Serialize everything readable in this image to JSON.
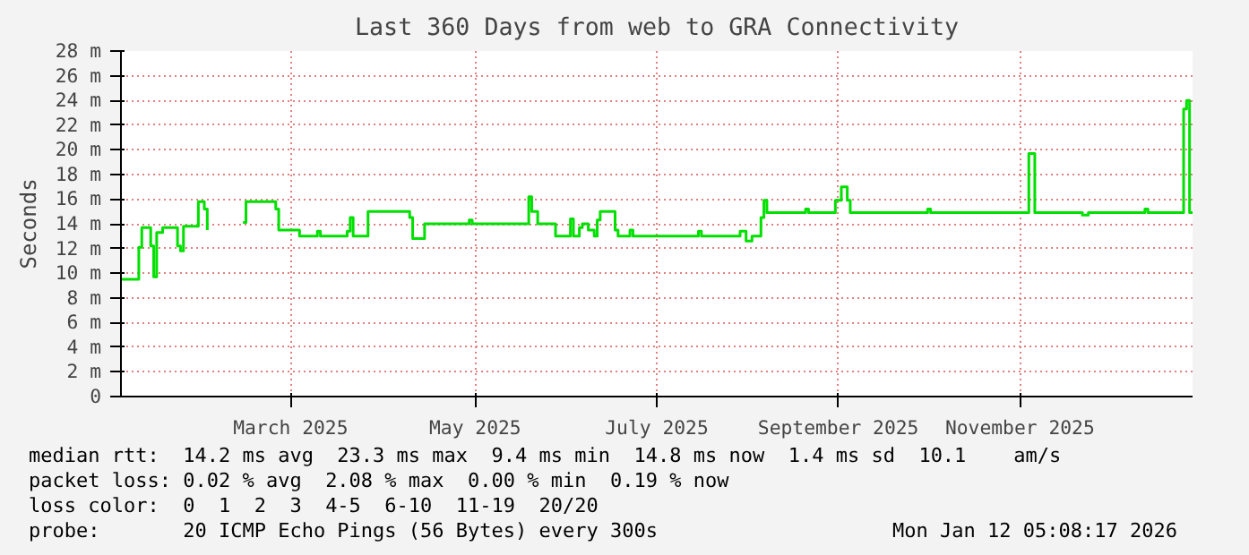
{
  "chart_data": {
    "type": "step",
    "title": "Last 360 Days from web to GRA Connectivity",
    "ylabel": "Seconds",
    "x": [
      "2025-01-17",
      "2025-01-23",
      "2025-01-24",
      "2025-01-27",
      "2025-01-28",
      "2025-01-29",
      "2025-01-31",
      "2025-02-05",
      "2025-02-06",
      "2025-02-07",
      "2025-02-12",
      "2025-02-14",
      "2025-02-15",
      "2025-02-19",
      "2025-02-27",
      "2025-02-28",
      "2025-03-10",
      "2025-03-11",
      "2025-03-18",
      "2025-03-24",
      "2025-03-25",
      "2025-04-03",
      "2025-04-04",
      "2025-04-05",
      "2025-04-10",
      "2025-04-24",
      "2025-04-25",
      "2025-04-29",
      "2025-05-14",
      "2025-05-15",
      "2025-06-03",
      "2025-06-04",
      "2025-06-06",
      "2025-06-12",
      "2025-06-17",
      "2025-06-18",
      "2025-06-20",
      "2025-06-21",
      "2025-06-23",
      "2025-06-25",
      "2025-06-26",
      "2025-06-27",
      "2025-07-02",
      "2025-07-03",
      "2025-07-07",
      "2025-07-08",
      "2025-07-30",
      "2025-07-31",
      "2025-08-13",
      "2025-08-15",
      "2025-08-17",
      "2025-08-20",
      "2025-08-21",
      "2025-08-22",
      "2025-09-04",
      "2025-09-05",
      "2025-09-14",
      "2025-09-16",
      "2025-09-18",
      "2025-09-19",
      "2025-10-15",
      "2025-10-16",
      "2025-11-18",
      "2025-11-20",
      "2025-12-06",
      "2025-12-08",
      "2025-12-27",
      "2025-12-28",
      "2026-01-09",
      "2026-01-10",
      "2026-01-11",
      "2026-01-12"
    ],
    "series": [
      {
        "color": "#00e000",
        "values": [
          9.5,
          12.1,
          13.7,
          12.2,
          9.7,
          13.3,
          13.7,
          12.2,
          11.8,
          13.8,
          15.8,
          15.2,
          13.5,
          null,
          14.1,
          15.8,
          15.2,
          13.5,
          13.0,
          13.4,
          13.0,
          13.4,
          14.5,
          13.0,
          15.0,
          14.5,
          12.8,
          14.0,
          14.3,
          14.0,
          16.2,
          15.0,
          14.0,
          13.0,
          14.4,
          13.0,
          13.7,
          14.0,
          13.5,
          13.0,
          14.3,
          15.0,
          13.5,
          13.0,
          13.5,
          13.0,
          13.4,
          13.0,
          13.4,
          12.6,
          13.0,
          14.5,
          15.9,
          14.9,
          15.2,
          14.9,
          15.9,
          17.0,
          15.9,
          14.9,
          15.2,
          14.9,
          19.7,
          14.9,
          14.7,
          14.9,
          15.2,
          14.9,
          23.3,
          24.0,
          14.9,
          14.9
        ]
      }
    ],
    "xlim": [
      "2025-01-17",
      "2026-01-12"
    ],
    "xticks": [
      {
        "value": "2025-03-15",
        "label": "March 2025"
      },
      {
        "value": "2025-05-16",
        "label": "May 2025"
      },
      {
        "value": "2025-07-16",
        "label": "July 2025"
      },
      {
        "value": "2025-09-15",
        "label": "September 2025"
      },
      {
        "value": "2025-11-15",
        "label": "November 2025"
      }
    ],
    "ylim": [
      0,
      28
    ],
    "yticks": [
      0,
      {
        "value": 2,
        "label": "2 m"
      },
      {
        "value": 4,
        "label": "4 m"
      },
      {
        "value": 6,
        "label": "6 m"
      },
      {
        "value": 8,
        "label": "8 m"
      },
      {
        "value": 10,
        "label": "10 m"
      },
      {
        "value": 12,
        "label": "12 m"
      },
      {
        "value": 14,
        "label": "14 m"
      },
      {
        "value": 16,
        "label": "16 m"
      },
      {
        "value": 18,
        "label": "18 m"
      },
      {
        "value": 20,
        "label": "20 m"
      },
      {
        "value": 22,
        "label": "22 m"
      },
      {
        "value": 24,
        "label": "24 m"
      },
      {
        "value": 26,
        "label": "26 m"
      },
      {
        "value": 28,
        "label": "28 m"
      }
    ],
    "grid": true,
    "annotations": [
      "median rtt:  14.2 ms avg  23.3 ms max  9.4 ms min  14.8 ms now  1.4 ms sd  10.1    am/s",
      "packet loss: 0.02 % avg  2.08 % max  0.00 % min  0.19 % now",
      "loss color:  0  1  2  3  4-5  6-10  11-19  20/20",
      "probe:       20 ICMP Echo Pings (56 Bytes) every 300s",
      "Mon Jan 12 05:08:17 2026"
    ]
  }
}
